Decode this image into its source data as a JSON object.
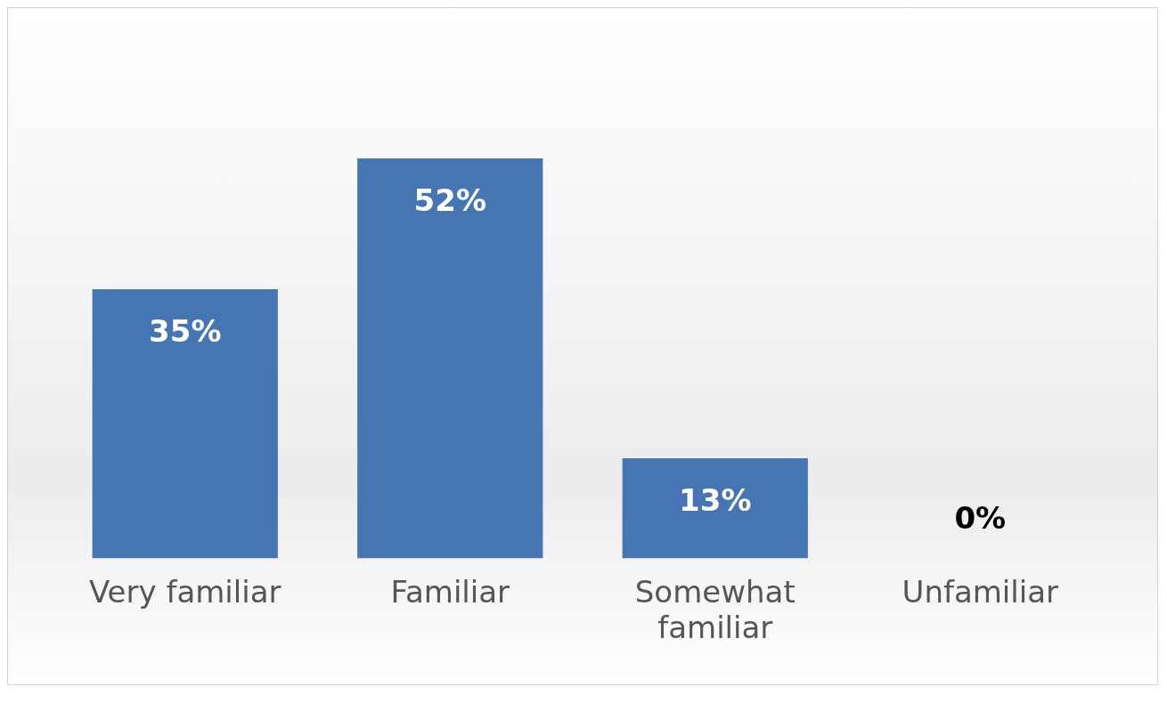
{
  "chart_data": {
    "type": "bar",
    "categories": [
      "Very familiar",
      "Familiar",
      "Somewhat familiar",
      "Unfamiliar"
    ],
    "values": [
      35,
      52,
      13,
      0
    ],
    "value_labels": [
      "35%",
      "52%",
      "13%",
      "0%"
    ],
    "color": "#4675b3",
    "grid": false,
    "legend": false
  }
}
